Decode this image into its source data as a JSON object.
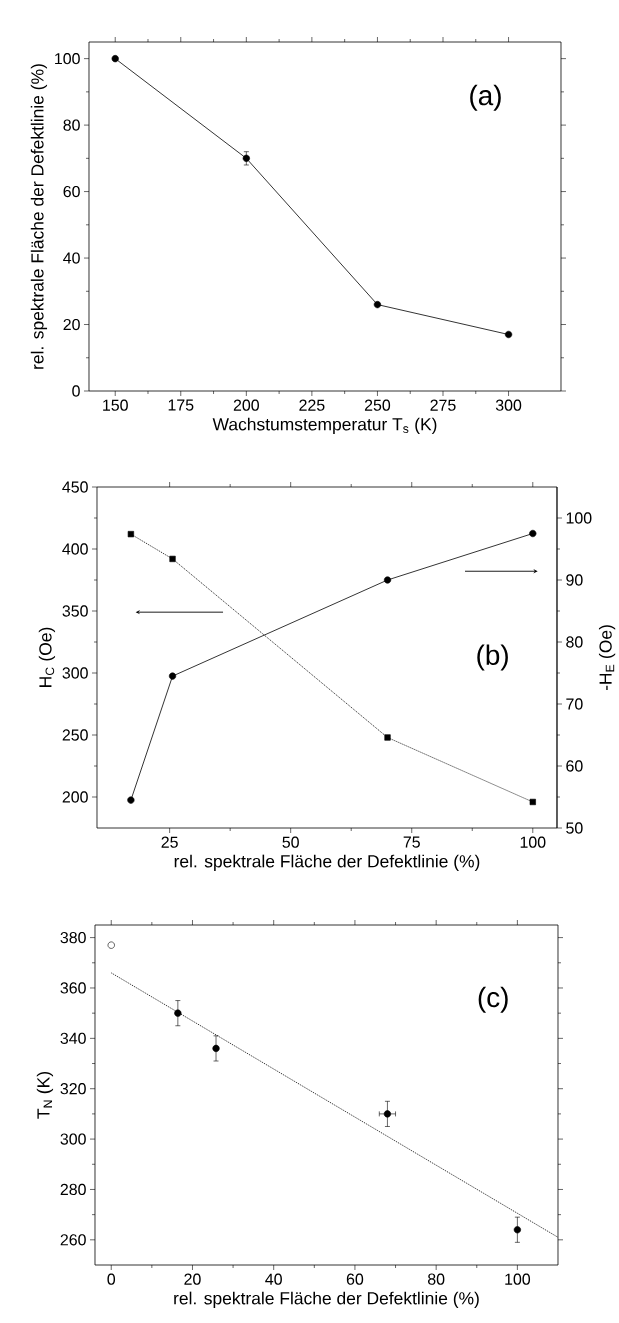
{
  "chart_data": [
    {
      "type": "line",
      "annotations": [
        "(a)"
      ],
      "xlabel": "Wachstumstemperatur T$_{s}$ (K)",
      "ylabel": "rel. spektrale Fläche der Defektlinie (%)",
      "x": [
        150,
        200,
        250,
        300
      ],
      "series": [
        {
          "color": "#000000",
          "values": [
            100,
            70,
            26,
            17
          ],
          "errors": [
            null,
            2,
            null,
            null
          ],
          "marker": "circle",
          "line_style": "solid"
        }
      ],
      "xlim": [
        140,
        320
      ],
      "ylim": [
        0,
        105
      ],
      "xticks": [
        150,
        175,
        200,
        225,
        250,
        275,
        300
      ],
      "yticks": [
        0,
        20,
        40,
        60,
        80,
        100
      ]
    },
    {
      "type": "line",
      "annotations": [
        "(b)"
      ],
      "xlabel": "rel. spektrale Fläche der Defektlinie (%)",
      "ylabel": "H$_{C}$ (Oe)",
      "y2label": "-H$_{E}$ (Oe)",
      "x": [
        17,
        25.6,
        70,
        100
      ],
      "series": [
        {
          "color": "#000000",
          "values": [
            412,
            392,
            248,
            196
          ],
          "marker": "square",
          "line_style": "dotted"
        },
        {
          "color": "#000000",
          "values": [
            54.5,
            74.5,
            90,
            97.5
          ],
          "axis": "y2",
          "marker": "circle",
          "line_style": "solid"
        }
      ],
      "xlim": [
        10,
        105
      ],
      "ylim": [
        175,
        450
      ],
      "y2lim": [
        50,
        105
      ],
      "xticks": [
        25,
        50,
        75,
        100
      ],
      "yticks": [
        200,
        250,
        300,
        350,
        400,
        450
      ],
      "y2ticks": [
        50,
        60,
        70,
        80,
        90,
        100
      ]
    },
    {
      "type": "scatter",
      "annotations": [
        "(c)"
      ],
      "xlabel": "rel. spektrale Fläche der Defektlinie (%)",
      "ylabel": "T$_{N}$ (K)",
      "series": [
        {
          "x": [
            0
          ],
          "values": [
            377
          ],
          "color": "#ffffff",
          "marker": "circle"
        },
        {
          "x": [
            16.4,
            25.8,
            68,
            100
          ],
          "values": [
            350,
            336,
            310,
            264
          ],
          "errors": [
            5,
            5,
            5,
            5
          ],
          "xerrors": [
            null,
            null,
            2,
            null
          ],
          "color": "#000000",
          "marker": "circle"
        },
        {
          "type": "line",
          "x": [
            0,
            110
          ],
          "values": [
            366,
            261
          ],
          "color": "#000000",
          "marker": "none",
          "line_style": "dotted"
        }
      ],
      "xlim": [
        -4,
        110
      ],
      "ylim": [
        250,
        385
      ],
      "xticks": [
        0,
        20,
        40,
        60,
        80,
        100
      ],
      "yticks": [
        260,
        280,
        300,
        320,
        340,
        360,
        380
      ]
    }
  ]
}
